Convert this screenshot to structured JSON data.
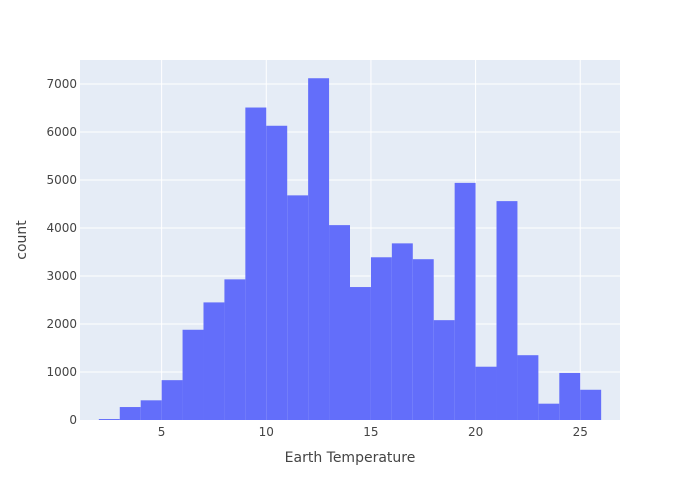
{
  "chart_data": {
    "type": "bar",
    "histogram": true,
    "xlabel": "Earth Temperature",
    "ylabel": "count",
    "xlim": [
      1.1,
      26.9
    ],
    "ylim": [
      0,
      7500
    ],
    "x_ticks": [
      5,
      10,
      15,
      20,
      25
    ],
    "y_ticks": [
      0,
      1000,
      2000,
      3000,
      4000,
      5000,
      6000,
      7000
    ],
    "grid": true,
    "bin_width": 1,
    "bins": [
      {
        "x0": 2,
        "x1": 3,
        "count": 20
      },
      {
        "x0": 3,
        "x1": 4,
        "count": 270
      },
      {
        "x0": 4,
        "x1": 5,
        "count": 410
      },
      {
        "x0": 5,
        "x1": 6,
        "count": 830
      },
      {
        "x0": 6,
        "x1": 7,
        "count": 1880
      },
      {
        "x0": 7,
        "x1": 8,
        "count": 2450
      },
      {
        "x0": 8,
        "x1": 9,
        "count": 2930
      },
      {
        "x0": 9,
        "x1": 10,
        "count": 6510
      },
      {
        "x0": 10,
        "x1": 11,
        "count": 6130
      },
      {
        "x0": 11,
        "x1": 12,
        "count": 4680
      },
      {
        "x0": 12,
        "x1": 13,
        "count": 7120
      },
      {
        "x0": 13,
        "x1": 14,
        "count": 4060
      },
      {
        "x0": 14,
        "x1": 15,
        "count": 2770
      },
      {
        "x0": 15,
        "x1": 16,
        "count": 3390
      },
      {
        "x0": 16,
        "x1": 17,
        "count": 3680
      },
      {
        "x0": 17,
        "x1": 18,
        "count": 3350
      },
      {
        "x0": 18,
        "x1": 19,
        "count": 2080
      },
      {
        "x0": 19,
        "x1": 20,
        "count": 4940
      },
      {
        "x0": 20,
        "x1": 21,
        "count": 1110
      },
      {
        "x0": 21,
        "x1": 22,
        "count": 4560
      },
      {
        "x0": 22,
        "x1": 23,
        "count": 1350
      },
      {
        "x0": 23,
        "x1": 24,
        "count": 340
      },
      {
        "x0": 24,
        "x1": 25,
        "count": 980
      },
      {
        "x0": 25,
        "x1": 26,
        "count": 630
      }
    ],
    "colors": {
      "bar": "#636efa",
      "plot_background": "#e5ecf6",
      "grid": "#ffffff",
      "text": "#444444"
    }
  }
}
